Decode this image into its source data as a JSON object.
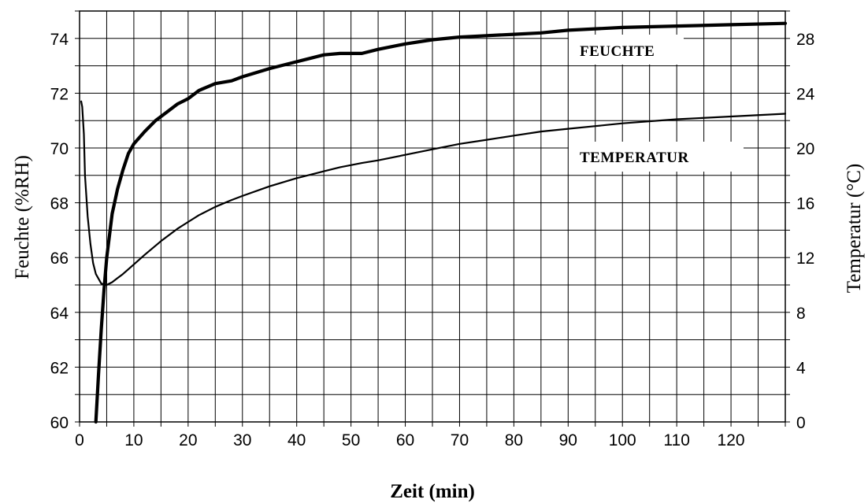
{
  "chart_data": {
    "type": "line",
    "xlabel": "Zeit (min)",
    "ylabel_left": "Feuchte (%RH)",
    "ylabel_right": "Temperatur (°C)",
    "xlim": [
      0,
      130
    ],
    "ylim_left": [
      60,
      75
    ],
    "ylim_right": [
      0,
      30
    ],
    "x_ticks": [
      "0",
      "10",
      "20",
      "30",
      "40",
      "50",
      "60",
      "70",
      "80",
      "90",
      "100",
      "110",
      "120"
    ],
    "y_left_ticks": [
      "60",
      "62",
      "64",
      "66",
      "68",
      "70",
      "72",
      "74"
    ],
    "y_right_ticks": [
      "0",
      "4",
      "8",
      "12",
      "16",
      "20",
      "24",
      "28"
    ],
    "grid": true,
    "annotations": [
      {
        "text": "FEUCHTE",
        "x": 92.5,
        "y": 73.6
      },
      {
        "text": "TEMPERATUR",
        "x": 92.5,
        "y": 69.7
      }
    ],
    "series": [
      {
        "axis": "left",
        "color": "#000000",
        "x": [
          0.3,
          0.5,
          0.8,
          1.0,
          1.5,
          2.0,
          2.5,
          3.0,
          4.0,
          5.0,
          6.0,
          7.0,
          8.0,
          10.0,
          12.0,
          15.0,
          18.0,
          20.0,
          22.0,
          25.0,
          28.0,
          30.0,
          35.0,
          40.0,
          45.0,
          48.0,
          52.0,
          55.0,
          60.0,
          65.0,
          70.0,
          75.0,
          80.0,
          85.0,
          90.0,
          95.0,
          100.0,
          110.0,
          120.0,
          130.0
        ],
        "y": [
          71.7,
          71.5,
          70.5,
          69.0,
          67.5,
          66.5,
          65.8,
          65.4,
          65.05,
          65.0,
          65.1,
          65.25,
          65.4,
          65.75,
          66.1,
          66.6,
          67.05,
          67.3,
          67.55,
          67.85,
          68.1,
          68.25,
          68.6,
          68.9,
          69.15,
          69.3,
          69.45,
          69.55,
          69.75,
          69.95,
          70.15,
          70.3,
          70.45,
          70.6,
          70.7,
          70.8,
          70.9,
          71.05,
          71.15,
          71.25
        ]
      },
      {
        "axis": "right",
        "color": "#000000",
        "x": [
          3.0,
          3.5,
          4.0,
          4.5,
          5.0,
          6.0,
          7.0,
          8.0,
          9.0,
          10.0,
          12.0,
          14.0,
          16.0,
          18.0,
          20.0,
          22.0,
          25.0,
          28.0,
          30.0,
          35.0,
          40.0,
          45.0,
          48.0,
          52.0,
          55.0,
          60.0,
          65.0,
          70.0,
          75.0,
          80.0,
          85.0,
          90.0,
          95.0,
          100.0,
          110.0,
          120.0,
          130.0
        ],
        "y": [
          0.0,
          3.5,
          6.8,
          9.6,
          12.0,
          15.2,
          17.0,
          18.4,
          19.6,
          20.3,
          21.2,
          22.0,
          22.6,
          23.2,
          23.6,
          24.2,
          24.7,
          24.9,
          25.2,
          25.8,
          26.3,
          26.8,
          26.9,
          26.9,
          27.2,
          27.6,
          27.9,
          28.1,
          28.2,
          28.3,
          28.4,
          28.6,
          28.7,
          28.8,
          28.9,
          29.0,
          29.1
        ]
      }
    ]
  }
}
